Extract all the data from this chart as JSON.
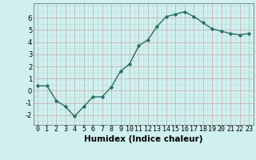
{
  "x": [
    0,
    1,
    2,
    3,
    4,
    5,
    6,
    7,
    8,
    9,
    10,
    11,
    12,
    13,
    14,
    15,
    16,
    17,
    18,
    19,
    20,
    21,
    22,
    23
  ],
  "y": [
    0.4,
    0.4,
    -0.8,
    -1.3,
    -2.1,
    -1.3,
    -0.5,
    -0.5,
    0.3,
    1.6,
    2.2,
    3.7,
    4.2,
    5.3,
    6.1,
    6.3,
    6.5,
    6.1,
    5.6,
    5.1,
    4.9,
    4.7,
    4.6,
    4.7
  ],
  "line_color": "#2a6e62",
  "marker": "D",
  "markersize": 1.8,
  "linewidth": 1.0,
  "xlabel": "Humidex (Indice chaleur)",
  "xlim": [
    -0.5,
    23.5
  ],
  "ylim": [
    -2.8,
    7.2
  ],
  "yticks": [
    -2,
    -1,
    0,
    1,
    2,
    3,
    4,
    5,
    6
  ],
  "xtick_labels": [
    "0",
    "1",
    "2",
    "3",
    "4",
    "5",
    "6",
    "7",
    "8",
    "9",
    "10",
    "11",
    "12",
    "13",
    "14",
    "15",
    "16",
    "17",
    "18",
    "19",
    "20",
    "21",
    "22",
    "23"
  ],
  "bg_color": "#cff0ee",
  "grid_color_major": "#c8a8a8",
  "grid_color_minor": "#b8dede",
  "xlabel_fontsize": 7.5,
  "tick_fontsize": 6.0
}
